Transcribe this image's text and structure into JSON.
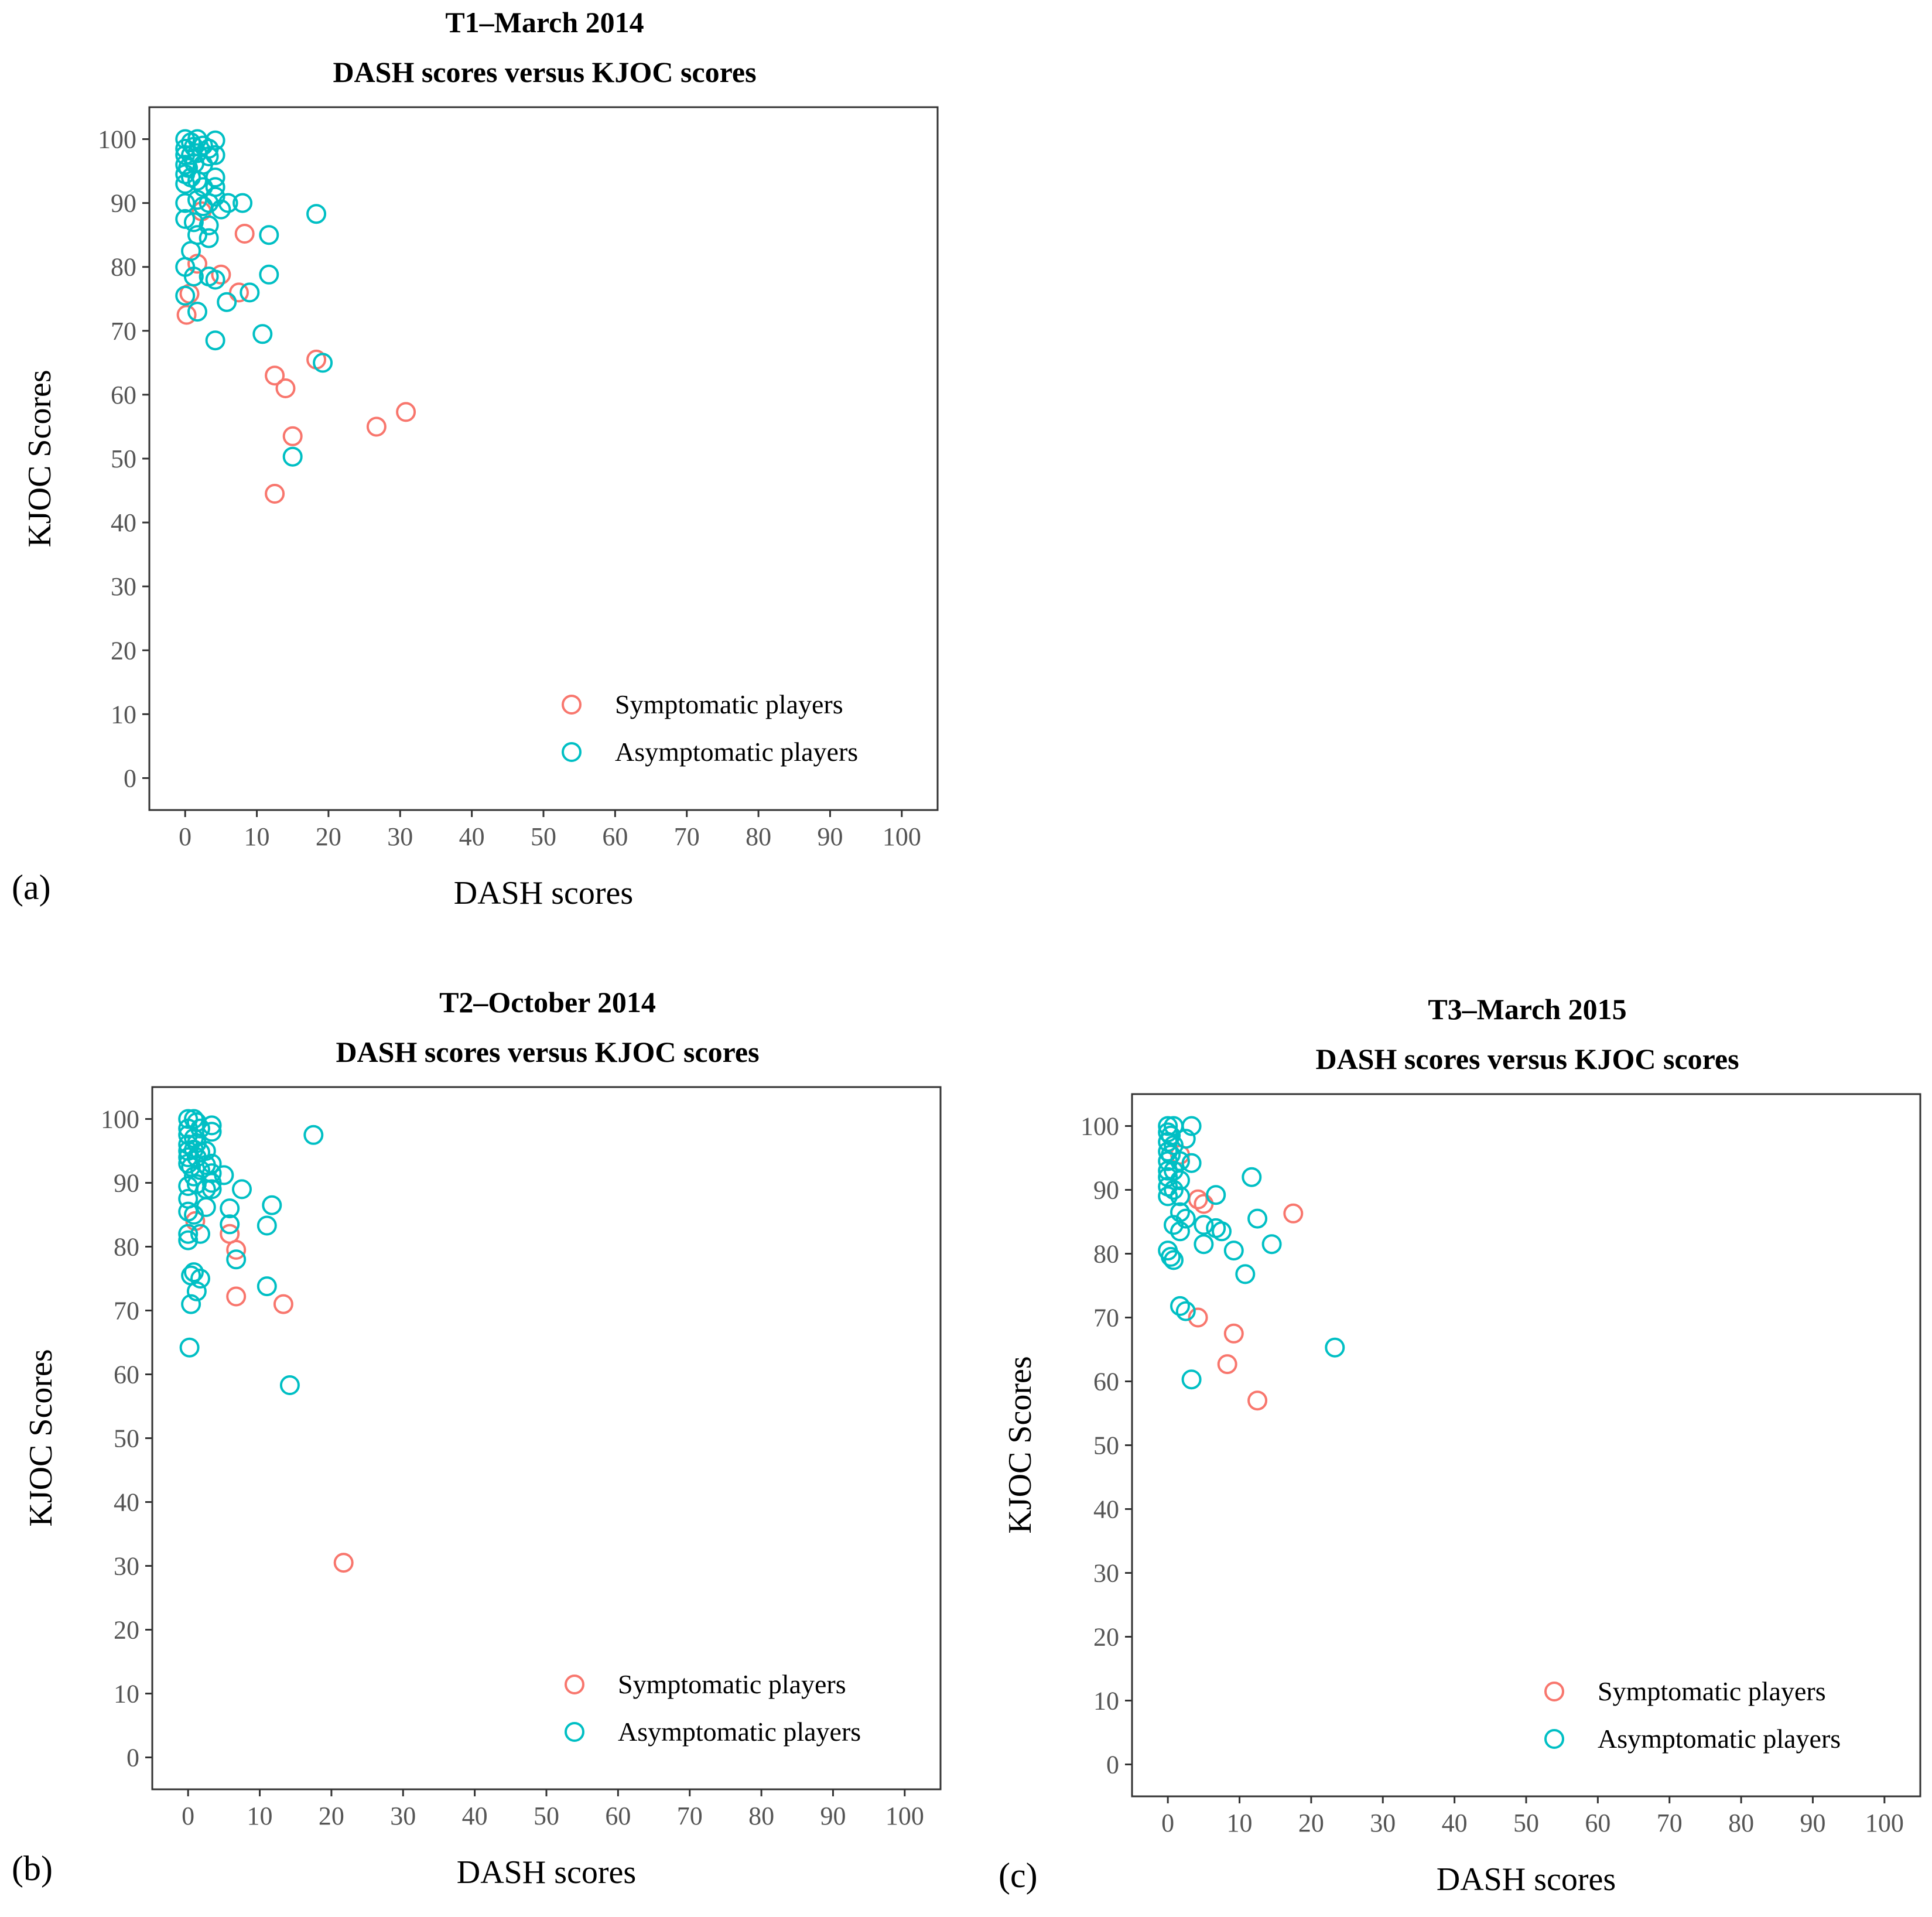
{
  "figure": {
    "colors": {
      "symptomatic": "#F8766D",
      "asymptomatic": "#00BFC4",
      "frame": "#333333",
      "tick_text": "#555555"
    }
  },
  "chart_data": [
    {
      "type": "scatter",
      "panel_label": "(a)",
      "title": "T1–March 2014",
      "subtitle": "DASH scores versus KJOC scores",
      "xlabel": "DASH scores",
      "ylabel": "KJOC Scores",
      "xlim": [
        -5,
        105
      ],
      "ylim": [
        -5,
        105
      ],
      "xticks": [
        0,
        10,
        20,
        30,
        40,
        50,
        60,
        70,
        80,
        90,
        100
      ],
      "yticks": [
        0,
        10,
        20,
        30,
        40,
        50,
        60,
        70,
        80,
        90,
        100
      ],
      "grid": false,
      "legend": "bottom-right",
      "series": [
        {
          "name": "Symptomatic players",
          "color": "#F8766D",
          "points": [
            [
              0.2,
              72.5
            ],
            [
              0.6,
              75.8
            ],
            [
              1.7,
              80.5
            ],
            [
              2.3,
              88.7
            ],
            [
              5,
              78.8
            ],
            [
              7.5,
              76
            ],
            [
              8.3,
              85.2
            ],
            [
              12.5,
              63
            ],
            [
              14,
              61
            ],
            [
              15,
              53.5
            ],
            [
              12.5,
              44.5
            ],
            [
              18.3,
              65.5
            ],
            [
              26.7,
              55
            ],
            [
              30.8,
              57.3
            ]
          ]
        },
        {
          "name": "Asymptomatic players",
          "color": "#00BFC4",
          "points": [
            [
              0,
              100
            ],
            [
              0.8,
              99.5
            ],
            [
              1.7,
              100
            ],
            [
              4.2,
              99.8
            ],
            [
              0,
              98.5
            ],
            [
              1.2,
              98.8
            ],
            [
              2.5,
              99
            ],
            [
              3.3,
              98.5
            ],
            [
              0,
              97.5
            ],
            [
              0.8,
              97.5
            ],
            [
              1.7,
              97.8
            ],
            [
              3.3,
              97.3
            ],
            [
              4.2,
              97.5
            ],
            [
              0,
              96
            ],
            [
              0.4,
              95.5
            ],
            [
              1.3,
              96.2
            ],
            [
              2.5,
              96
            ],
            [
              0,
              94.5
            ],
            [
              0.8,
              94
            ],
            [
              1.7,
              93.5
            ],
            [
              4.2,
              94
            ],
            [
              0,
              93
            ],
            [
              2.5,
              92.5
            ],
            [
              4.2,
              92.5
            ],
            [
              0,
              90
            ],
            [
              1.7,
              90.5
            ],
            [
              3.3,
              90
            ],
            [
              4.2,
              91
            ],
            [
              6,
              90
            ],
            [
              8,
              90
            ],
            [
              2.5,
              89.5
            ],
            [
              5,
              89
            ],
            [
              0,
              87.5
            ],
            [
              1.2,
              87
            ],
            [
              3.3,
              86.5
            ],
            [
              1.7,
              85
            ],
            [
              3.3,
              84.5
            ],
            [
              11.7,
              85
            ],
            [
              18.3,
              88.3
            ],
            [
              0,
              80
            ],
            [
              0.8,
              82.5
            ],
            [
              1.2,
              78.5
            ],
            [
              3.3,
              78.5
            ],
            [
              4.2,
              78
            ],
            [
              11.7,
              78.8
            ],
            [
              0,
              75.5
            ],
            [
              5.8,
              74.5
            ],
            [
              9,
              76
            ],
            [
              1.7,
              73
            ],
            [
              4.2,
              68.5
            ],
            [
              10.8,
              69.5
            ],
            [
              19.2,
              65
            ],
            [
              15,
              50.3
            ]
          ]
        }
      ]
    },
    {
      "type": "scatter",
      "panel_label": "(b)",
      "title": "T2–October 2014",
      "subtitle": "DASH scores versus KJOC scores",
      "xlabel": "DASH scores",
      "ylabel": "KJOC Scores",
      "xlim": [
        -5,
        105
      ],
      "ylim": [
        -5,
        105
      ],
      "xticks": [
        0,
        10,
        20,
        30,
        40,
        50,
        60,
        70,
        80,
        90,
        100
      ],
      "yticks": [
        0,
        10,
        20,
        30,
        40,
        50,
        60,
        70,
        80,
        90,
        100
      ],
      "grid": false,
      "legend": "bottom-right",
      "series": [
        {
          "name": "Symptomatic players",
          "color": "#F8766D",
          "points": [
            [
              1,
              84
            ],
            [
              5.8,
              82
            ],
            [
              6.7,
              79.5
            ],
            [
              6.7,
              72.2
            ],
            [
              13.3,
              71
            ],
            [
              21.7,
              30.5
            ]
          ]
        },
        {
          "name": "Asymptomatic players",
          "color": "#00BFC4",
          "points": [
            [
              0,
              100
            ],
            [
              0.8,
              100
            ],
            [
              1.2,
              99.5
            ],
            [
              0,
              98.5
            ],
            [
              1.7,
              98.5
            ],
            [
              3.3,
              99
            ],
            [
              3.3,
              98
            ],
            [
              0,
              97.5
            ],
            [
              0.8,
              97
            ],
            [
              0,
              96
            ],
            [
              1.2,
              96.2
            ],
            [
              0,
              95
            ],
            [
              0.8,
              95.2
            ],
            [
              1.7,
              94.8
            ],
            [
              2.5,
              95
            ],
            [
              0,
              94
            ],
            [
              1.2,
              94
            ],
            [
              0,
              93
            ],
            [
              2.5,
              92.8
            ],
            [
              3.3,
              93
            ],
            [
              0.4,
              92.5
            ],
            [
              1.7,
              92
            ],
            [
              3.3,
              91.5
            ],
            [
              0.8,
              91
            ],
            [
              3.3,
              90
            ],
            [
              5,
              91.2
            ],
            [
              0,
              89.5
            ],
            [
              1.2,
              89.8
            ],
            [
              2.5,
              89
            ],
            [
              3.3,
              89
            ],
            [
              7.5,
              89
            ],
            [
              0,
              87.5
            ],
            [
              2.5,
              86.2
            ],
            [
              11.7,
              86.5
            ],
            [
              0,
              85.5
            ],
            [
              0.8,
              85
            ],
            [
              5.8,
              86
            ],
            [
              5.8,
              83.5
            ],
            [
              11,
              83.3
            ],
            [
              0,
              82
            ],
            [
              1.7,
              82
            ],
            [
              0,
              81
            ],
            [
              6.7,
              78
            ],
            [
              0.4,
              75.5
            ],
            [
              0.8,
              76
            ],
            [
              1.7,
              75
            ],
            [
              1.2,
              73
            ],
            [
              11,
              73.8
            ],
            [
              0.4,
              71
            ],
            [
              0.2,
              64.2
            ],
            [
              14.2,
              58.3
            ],
            [
              17.5,
              97.5
            ]
          ]
        }
      ]
    },
    {
      "type": "scatter",
      "panel_label": "(c)",
      "title": "T3–March 2015",
      "subtitle": "DASH scores versus KJOC scores",
      "xlabel": "DASH scores",
      "ylabel": "KJOC Scores",
      "xlim": [
        -5,
        105
      ],
      "ylim": [
        -5,
        105
      ],
      "xticks": [
        0,
        10,
        20,
        30,
        40,
        50,
        60,
        70,
        80,
        90,
        100
      ],
      "yticks": [
        0,
        10,
        20,
        30,
        40,
        50,
        60,
        70,
        80,
        90,
        100
      ],
      "grid": false,
      "legend": "bottom-right",
      "series": [
        {
          "name": "Symptomatic players",
          "color": "#F8766D",
          "points": [
            [
              1.7,
              95.5
            ],
            [
              4.2,
              88.5
            ],
            [
              5,
              87.8
            ],
            [
              17.5,
              86.3
            ],
            [
              4.2,
              70
            ],
            [
              9.2,
              67.5
            ],
            [
              8.3,
              62.7
            ],
            [
              12.5,
              57
            ]
          ]
        },
        {
          "name": "Asymptomatic players",
          "color": "#00BFC4",
          "points": [
            [
              0,
              100
            ],
            [
              0.8,
              100
            ],
            [
              3.3,
              100
            ],
            [
              0,
              99
            ],
            [
              0.4,
              98.5
            ],
            [
              0,
              97.5
            ],
            [
              0.8,
              97
            ],
            [
              2.5,
              98
            ],
            [
              0,
              96
            ],
            [
              0.4,
              95.5
            ],
            [
              0,
              94.5
            ],
            [
              1.7,
              94.5
            ],
            [
              0,
              93
            ],
            [
              0.8,
              93
            ],
            [
              3.3,
              94.2
            ],
            [
              0,
              92
            ],
            [
              1.7,
              91.5
            ],
            [
              0,
              90.5
            ],
            [
              0.8,
              90
            ],
            [
              0,
              89
            ],
            [
              1.7,
              89
            ],
            [
              6.7,
              89.2
            ],
            [
              11.7,
              92
            ],
            [
              1.7,
              86.5
            ],
            [
              2.5,
              85.5
            ],
            [
              12.5,
              85.5
            ],
            [
              0.8,
              84.5
            ],
            [
              1.7,
              83.5
            ],
            [
              5,
              84.5
            ],
            [
              6.7,
              84
            ],
            [
              7.5,
              83.5
            ],
            [
              14.5,
              81.5
            ],
            [
              5,
              81.5
            ],
            [
              9.2,
              80.5
            ],
            [
              0,
              80.5
            ],
            [
              0.4,
              79.5
            ],
            [
              0.8,
              79
            ],
            [
              10.8,
              76.8
            ],
            [
              1.7,
              71.8
            ],
            [
              2.5,
              71
            ],
            [
              3.3,
              60.3
            ],
            [
              23.3,
              65.3
            ]
          ]
        }
      ]
    }
  ]
}
